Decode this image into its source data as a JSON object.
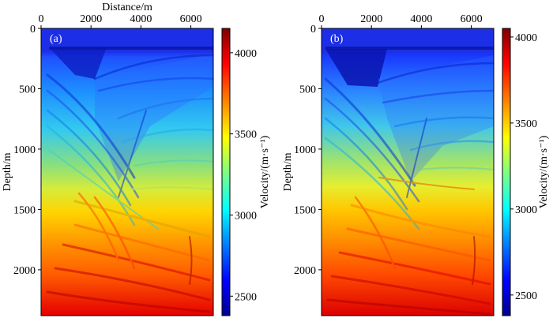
{
  "chart_data": [
    {
      "type": "heatmap",
      "panel_label": "(a)",
      "xlabel": "Distance/m",
      "ylabel": "Depth/m",
      "xlim": [
        0,
        6900
      ],
      "ylim": [
        2380,
        0
      ],
      "xticks": [
        0,
        2000,
        4000,
        6000
      ],
      "yticks": [
        0,
        500,
        1000,
        1500,
        2000
      ],
      "colorbar": {
        "label": "Velocity/(m·s⁻¹)",
        "range": [
          2380,
          4150
        ],
        "ticks": [
          2500,
          3000,
          3500,
          4000
        ],
        "colormap": "jet"
      },
      "description_values": {
        "water_layer_depth": 160,
        "min_velocity": 2380,
        "max_velocity": 4150
      }
    },
    {
      "type": "heatmap",
      "panel_label": "(b)",
      "xlabel": "",
      "ylabel": "Depth/m",
      "xlim": [
        0,
        6900
      ],
      "ylim": [
        2380,
        0
      ],
      "xticks": [
        0,
        2000,
        4000,
        6000
      ],
      "yticks": [
        0,
        500,
        1000,
        1500,
        2000
      ],
      "colorbar": {
        "label": "Velocity/(m·s⁻¹)",
        "range": [
          2380,
          4050
        ],
        "ticks": [
          2500,
          3000,
          3500,
          4000
        ],
        "colormap": "jet"
      },
      "description_values": {
        "water_layer_depth": 160,
        "min_velocity": 2380,
        "max_velocity": 4050
      }
    }
  ],
  "colors": {
    "jet_stops": [
      "#00008f",
      "#0000ff",
      "#0080ff",
      "#00ffff",
      "#80ff80",
      "#ffff00",
      "#ff8000",
      "#ff0000",
      "#800000"
    ],
    "water": "#1f2fe0"
  }
}
